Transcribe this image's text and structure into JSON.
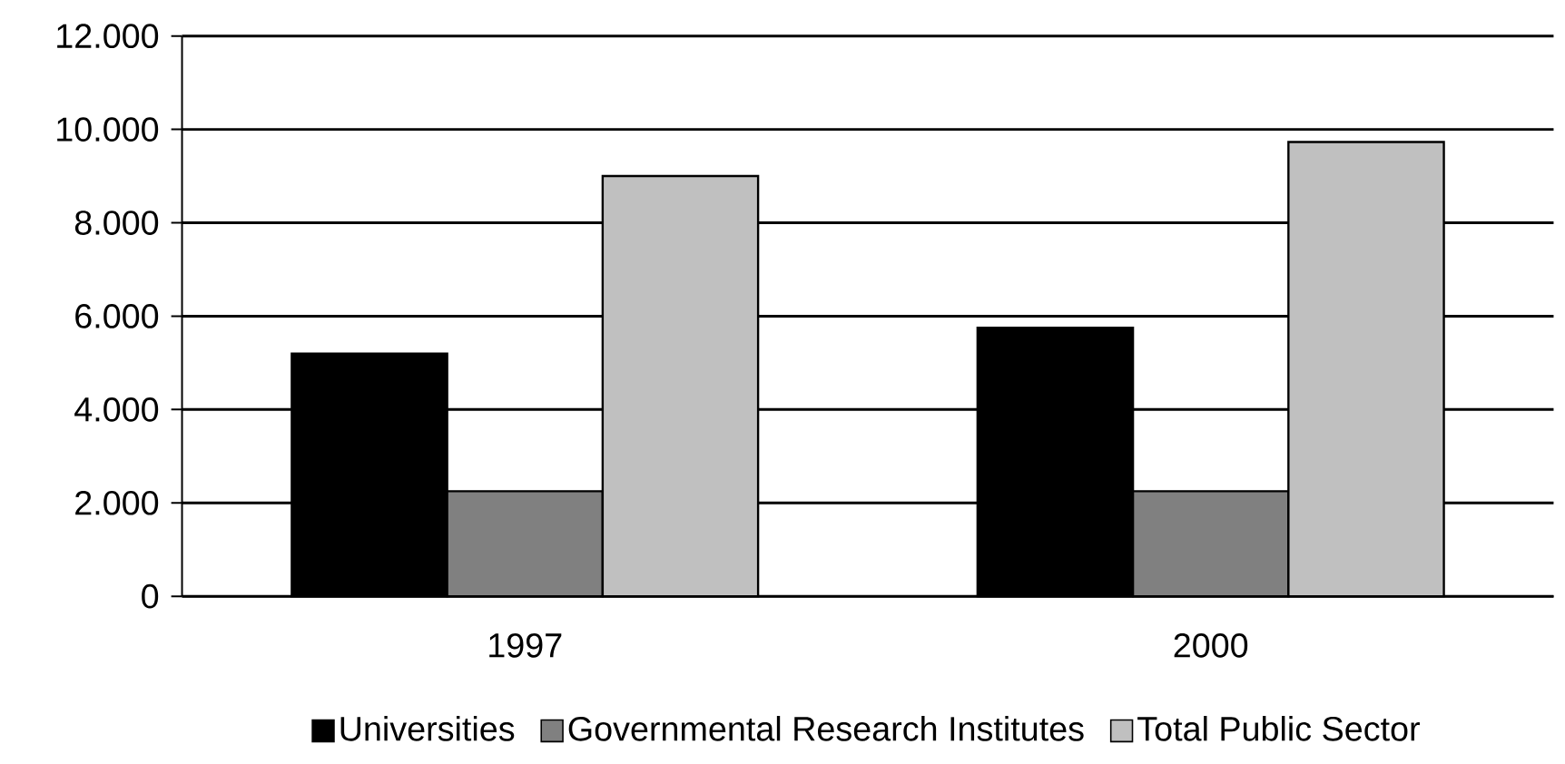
{
  "chart_data": {
    "type": "bar",
    "categories": [
      "1997",
      "2000"
    ],
    "series": [
      {
        "name": "Universities",
        "color": "#000000",
        "values": [
          5200,
          5750
        ]
      },
      {
        "name": "Governmental Research Institutes",
        "color": "#808080",
        "values": [
          2250,
          2250
        ]
      },
      {
        "name": "Total Public Sector",
        "color": "#c0c0c0",
        "values": [
          9000,
          9730
        ]
      }
    ],
    "ylim": [
      0,
      12000
    ],
    "yticks": [
      0,
      {
        "value": 2000,
        "label": "2.000"
      },
      {
        "value": 4000,
        "label": "4.000"
      },
      {
        "value": 6000,
        "label": "6.000"
      },
      {
        "value": 8000,
        "label": "8.000"
      },
      {
        "value": 10000,
        "label": "10.000"
      },
      {
        "value": 12000,
        "label": "12.000"
      }
    ],
    "grid": "y",
    "legend": "bottom"
  }
}
